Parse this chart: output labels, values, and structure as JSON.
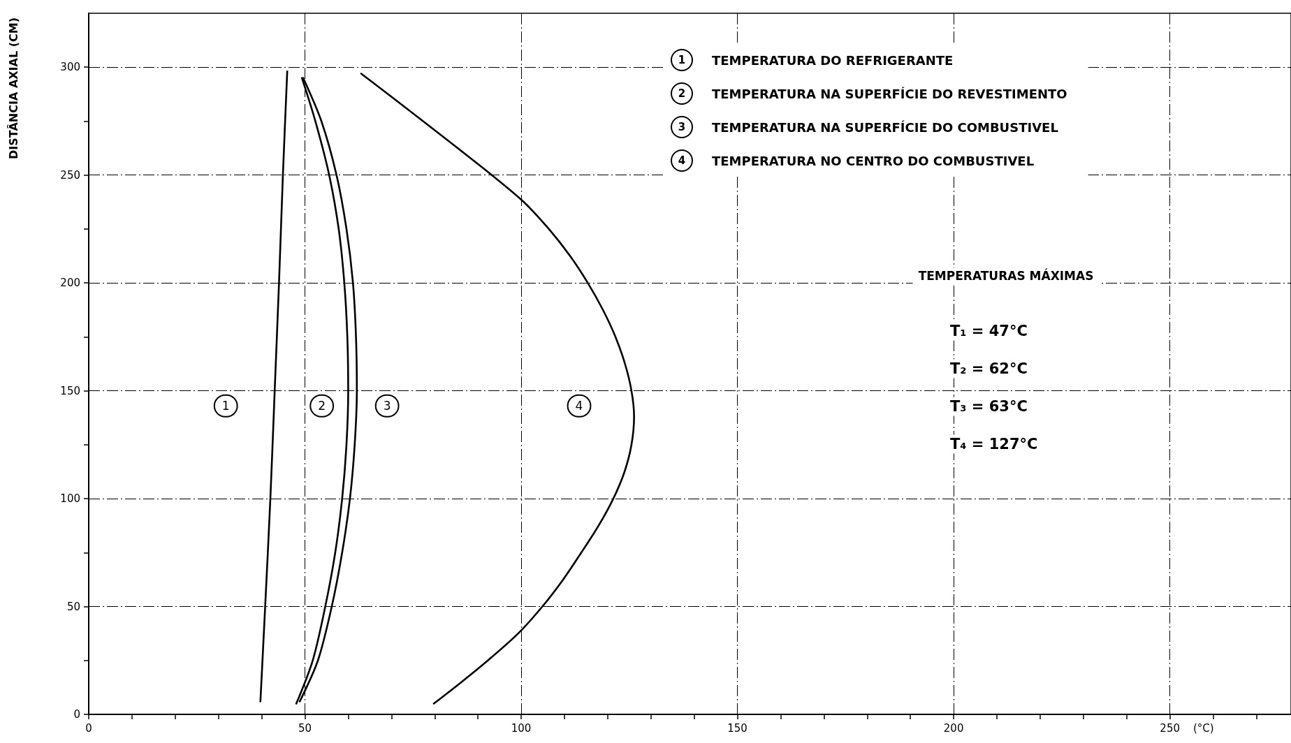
{
  "chart_data": {
    "type": "line",
    "xlabel": "(°C)",
    "ylabel": "DISTÂNCIA AXIAL (CM)",
    "xlim": [
      0,
      278
    ],
    "xticks": [
      0,
      {
        "value": 10,
        "label": null
      },
      {
        "value": 20,
        "label": null
      },
      {
        "value": 30,
        "label": null
      },
      {
        "value": 40,
        "label": null
      },
      50,
      {
        "value": 60,
        "label": null
      },
      {
        "value": 70,
        "label": null
      },
      {
        "value": 80,
        "label": null
      },
      {
        "value": 90,
        "label": null
      },
      100,
      {
        "value": 110,
        "label": null
      },
      {
        "value": 120,
        "label": null
      },
      {
        "value": 130,
        "label": null
      },
      {
        "value": 140,
        "label": null
      },
      150,
      {
        "value": 160,
        "label": null
      },
      {
        "value": 170,
        "label": null
      },
      {
        "value": 180,
        "label": null
      },
      {
        "value": 190,
        "label": null
      },
      200,
      {
        "value": 210,
        "label": null
      },
      {
        "value": 220,
        "label": null
      },
      {
        "value": 230,
        "label": null
      },
      {
        "value": 240,
        "label": null
      },
      250,
      {
        "value": 260,
        "label": null
      },
      {
        "value": 270,
        "label": null
      }
    ],
    "ylim": [
      0,
      325
    ],
    "yticks": [
      0,
      {
        "value": 25,
        "label": null
      },
      50,
      {
        "value": 75,
        "label": null
      },
      100,
      {
        "value": 125,
        "label": null
      },
      150,
      {
        "value": 175,
        "label": null
      },
      200,
      {
        "value": 225,
        "label": null
      },
      250,
      {
        "value": 275,
        "label": null
      },
      300
    ],
    "grid": true,
    "legend": "top right",
    "series": [
      {
        "name": "TEMPERATURA DO REFRIGERANTE",
        "color": "#000000",
        "x": [
          39.7,
          40.8,
          42,
          43,
          44,
          44.9,
          45.9
        ],
        "values": [
          6,
          50,
          100,
          150,
          200,
          250,
          298
        ]
      },
      {
        "name": "TEMPERATURA NA SUPERFÍCIE DO REVESTIMENTO",
        "color": "#000000",
        "x": [
          48,
          51.8,
          54.7,
          57,
          58.6,
          59.6,
          60,
          59.8,
          59.1,
          57.8,
          55.6,
          52.4,
          49.3
        ],
        "values": [
          5,
          25,
          50,
          75,
          100,
          125,
          150,
          175,
          200,
          225,
          250,
          275,
          295
        ]
      },
      {
        "name": "TEMPERATURA NA SUPERFÍCIE DO COMBUSTIVEL",
        "color": "#000000",
        "x": [
          48.8,
          53,
          56.2,
          58.6,
          60.4,
          61.5,
          62,
          61.8,
          61.1,
          59.6,
          57.3,
          53.8,
          49.6
        ],
        "values": [
          6,
          25,
          50,
          75,
          100,
          125,
          150,
          175,
          200,
          225,
          250,
          275,
          295
        ]
      },
      {
        "name": "TEMPERATURA NO CENTRO DO COMBUSTIVEL",
        "color": "#000000",
        "x": [
          79.8,
          86.2,
          92.3,
          99.3,
          104.9,
          109.7,
          113.9,
          117.9,
          121.3,
          123.9,
          125.5,
          126.1,
          125.5,
          124,
          121.8,
          118.9,
          115.4,
          111.3,
          106.4,
          100.6,
          93.2,
          85.3,
          77.3,
          70.2,
          63
        ],
        "values": [
          5,
          15,
          25,
          37.5,
          50,
          62.5,
          75,
          87.5,
          100,
          112.5,
          125,
          138,
          150,
          162.5,
          175,
          187.5,
          200,
          212.5,
          225,
          237.5,
          250,
          262.5,
          275,
          286,
          297
        ]
      }
    ],
    "annotations": [
      {
        "text": "1",
        "x": 31.7,
        "y": 143
      },
      {
        "text": "2",
        "x": 53.9,
        "y": 143
      },
      {
        "text": "3",
        "x": 69,
        "y": 143
      },
      {
        "text": "4",
        "x": 113.4,
        "y": 143
      },
      "TEMPERATURAS MÁXIMAS",
      "T₁ = 47°C",
      "T₂ = 62°C",
      "T₃ = 63°C",
      "T₄ = 127°C"
    ]
  }
}
